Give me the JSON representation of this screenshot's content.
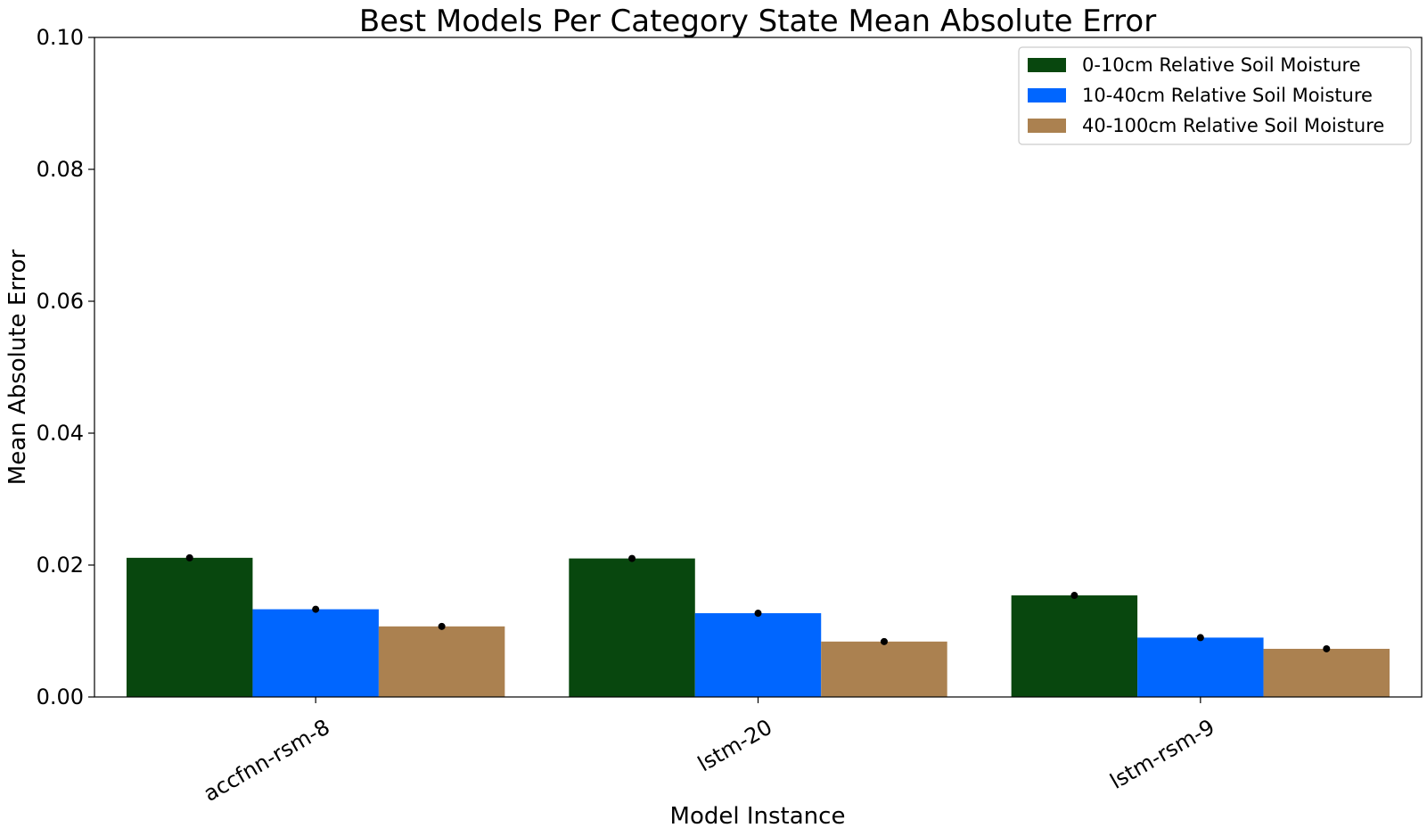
{
  "chart_data": {
    "type": "bar",
    "title": "Best Models Per Category State Mean Absolute Error",
    "xlabel": "Model Instance",
    "ylabel": "Mean Absolute Error",
    "ylim": [
      0,
      0.1
    ],
    "yticks": [
      "0.00",
      "0.02",
      "0.04",
      "0.06",
      "0.08",
      "0.10"
    ],
    "ytick_values": [
      0,
      0.02,
      0.04,
      0.06,
      0.08,
      0.1
    ],
    "categories": [
      "accfnn-rsm-8",
      "lstm-20",
      "lstm-rsm-9"
    ],
    "series": [
      {
        "name": "0-10cm Relative Soil Moisture",
        "color": "#08470e",
        "values": [
          0.0211,
          0.021,
          0.0154
        ],
        "errors": [
          0.0005,
          0.0003,
          0.0002
        ]
      },
      {
        "name": "10-40cm Relative Soil Moisture",
        "color": "#0066ff",
        "values": [
          0.0133,
          0.0127,
          0.009
        ],
        "errors": [
          0.0002,
          0.0002,
          0.0002
        ]
      },
      {
        "name": "40-100cm Relative Soil Moisture",
        "color": "#ab8150",
        "values": [
          0.0107,
          0.0084,
          0.0073
        ],
        "errors": [
          0.0002,
          0.0001,
          0.0001
        ]
      }
    ],
    "legend_position": "top-right",
    "grid": false,
    "xtick_rotation": "30 degrees"
  }
}
